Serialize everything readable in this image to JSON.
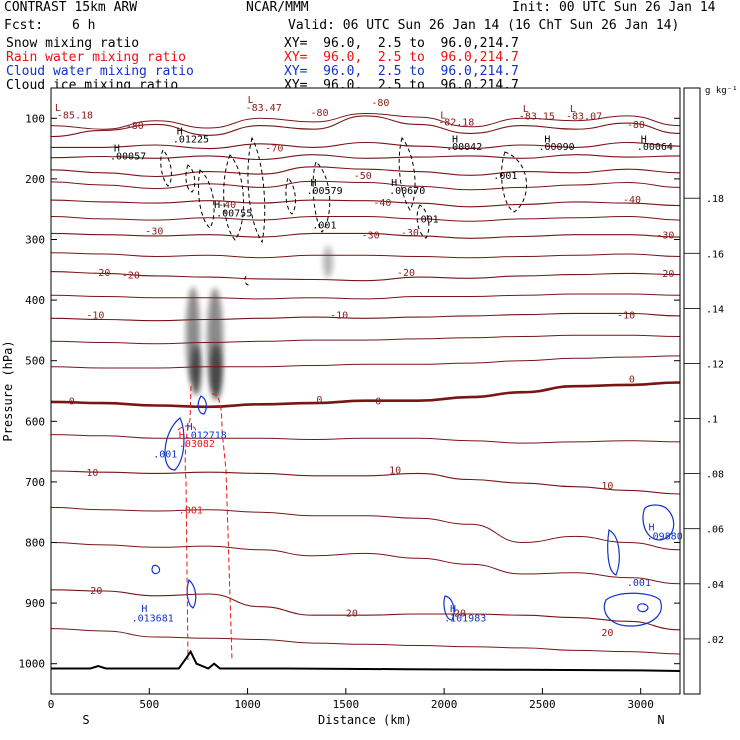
{
  "header": {
    "title": "CONTRAST 15km ARW",
    "center": "NCAR/MMM",
    "init": "Init: 00 UTC Sun 26 Jan 14",
    "fcst_label": "Fcst:",
    "fcst_value": "6 h",
    "valid": "Valid: 06 UTC Sun 26 Jan 14 (16 ChT Sun 26 Jan 14)",
    "fields": [
      {
        "name": "Snow mixing ratio",
        "xy": "XY=  96.0,  2.5 to  96.0,214.7",
        "color": "#000000"
      },
      {
        "name": "Rain water mixing ratio",
        "xy": "XY=  96.0,  2.5 to  96.0,214.7",
        "color": "#ee1111"
      },
      {
        "name": "Cloud water mixing ratio",
        "xy": "XY=  96.0,  2.5 to  96.0,214.7",
        "color": "#1133cc"
      },
      {
        "name": "Cloud ice mixing ratio",
        "xy": "XY=  96.0,  2.5 to  96.0,214.7",
        "color": "#000000"
      }
    ]
  },
  "chart_data": {
    "type": "cross-section",
    "xlabel": "Distance (km)",
    "ylabel": "Pressure (hPa)",
    "xlim": [
      0,
      3200
    ],
    "ylim": [
      1050,
      50
    ],
    "x_ticks": [
      0,
      500,
      1000,
      1500,
      2000,
      2500,
      3000
    ],
    "y_ticks": [
      100,
      200,
      300,
      400,
      500,
      600,
      700,
      800,
      900,
      1000
    ],
    "left_end": "S",
    "right_end": "N",
    "colorbar": {
      "unit": "g kg⁻¹",
      "ticks": [
        ".02",
        ".04",
        ".06",
        ".08",
        ".1",
        ".12",
        ".14",
        ".16",
        ".18"
      ],
      "colors": [
        "#ffffff",
        "#f2f2f2",
        "#e2e2e2",
        "#d0d0d0",
        "#bdbdbd",
        "#a8a8a8",
        "#929292",
        "#7b7b7b",
        "#636363",
        "#4c4c4c",
        "#363636"
      ]
    },
    "temperature_contours": [
      {
        "label": "-80",
        "p": [
          130,
          120,
          110,
          128,
          112,
          118,
          96,
          110,
          125,
          112,
          118,
          108,
          125
        ]
      },
      {
        "label": "-70",
        "p": [
          148,
          148,
          144,
          150,
          142,
          148,
          140,
          146,
          150,
          144,
          148,
          140,
          146
        ]
      },
      {
        "label": "-60",
        "p": [
          165,
          163,
          166,
          162,
          168,
          160,
          166,
          164,
          162,
          166,
          160,
          164,
          162
        ]
      },
      {
        "label": "-50",
        "p": [
          185,
          190,
          196,
          188,
          192,
          180,
          184,
          188,
          194,
          188,
          190,
          184,
          190
        ]
      },
      {
        "label": "-40",
        "p": [
          235,
          238,
          240,
          236,
          240,
          235,
          236,
          240,
          246,
          242,
          238,
          240,
          244
        ]
      },
      {
        "label": "-30",
        "p": [
          290,
          292,
          294,
          292,
          296,
          290,
          290,
          294,
          298,
          295,
          292,
          292,
          296
        ]
      },
      {
        "label": "-20",
        "p": [
          353,
          356,
          360,
          362,
          365,
          366,
          368,
          362,
          364,
          360,
          358,
          356,
          358
        ]
      },
      {
        "label": "-10",
        "p": [
          430,
          432,
          434,
          432,
          430,
          428,
          430,
          428,
          426,
          424,
          422,
          422,
          426
        ]
      },
      {
        "label": "0",
        "p": [
          568,
          570,
          574,
          576,
          572,
          570,
          566,
          566,
          560,
          552,
          542,
          540,
          536
        ]
      },
      {
        "label": "10",
        "p": [
          682,
          684,
          686,
          684,
          686,
          690,
          690,
          686,
          696,
          702,
          708,
          714,
          720
        ]
      },
      {
        "label": "20",
        "p": [
          878,
          880,
          888,
          885,
          906,
          920,
          920,
          918,
          918,
          920,
          924,
          930,
          944
        ]
      }
    ],
    "surface_pressure": [
      1008,
      1008,
      1006,
      980,
      1006,
      1007,
      1008,
      1009,
      1010,
      1010,
      1011,
      1012,
      1012
    ],
    "contour_labels": [
      {
        "text": "L",
        "x": 20,
        "p": 88,
        "color": "#8b1a1a"
      },
      {
        "text": "-85.18",
        "x": 30,
        "p": 100,
        "color": "#8b1a1a"
      },
      {
        "text": "L",
        "x": 1000,
        "p": 75,
        "color": "#8b1a1a"
      },
      {
        "text": "-83.47",
        "x": 990,
        "p": 88,
        "color": "#8b1a1a"
      },
      {
        "text": "L",
        "x": 1980,
        "p": 100,
        "color": "#8b1a1a"
      },
      {
        "text": "-82.18",
        "x": 1970,
        "p": 112,
        "color": "#8b1a1a"
      },
      {
        "text": "L",
        "x": 2400,
        "p": 90,
        "color": "#8b1a1a"
      },
      {
        "text": "-83.15",
        "x": 2380,
        "p": 102,
        "color": "#8b1a1a"
      },
      {
        "text": "L",
        "x": 2640,
        "p": 90,
        "color": "#8b1a1a"
      },
      {
        "text": "-83.07",
        "x": 2620,
        "p": 102,
        "color": "#8b1a1a"
      },
      {
        "text": "-80",
        "x": 380,
        "p": 118,
        "color": "#8b1a1a"
      },
      {
        "text": "-80",
        "x": 1320,
        "p": 96,
        "color": "#8b1a1a"
      },
      {
        "text": "-80",
        "x": 1630,
        "p": 80,
        "color": "#8b1a1a"
      },
      {
        "text": "-80",
        "x": 2930,
        "p": 116,
        "color": "#8b1a1a"
      },
      {
        "text": "-70",
        "x": 1090,
        "p": 155,
        "color": "#8b1a1a"
      },
      {
        "text": "-50",
        "x": 1540,
        "p": 200,
        "color": "#8b1a1a"
      },
      {
        "text": "-40",
        "x": 850,
        "p": 248,
        "color": "#8b1a1a"
      },
      {
        "text": "-40",
        "x": 1640,
        "p": 245,
        "color": "#8b1a1a"
      },
      {
        "text": "-40",
        "x": 2910,
        "p": 240,
        "color": "#8b1a1a"
      },
      {
        "text": "-30",
        "x": 480,
        "p": 292,
        "color": "#8b1a1a"
      },
      {
        "text": "-30",
        "x": 1580,
        "p": 298,
        "color": "#8b1a1a"
      },
      {
        "text": "-30",
        "x": 1780,
        "p": 294,
        "color": "#8b1a1a"
      },
      {
        "text": "-30",
        "x": 3080,
        "p": 298,
        "color": "#8b1a1a"
      },
      {
        "text": "-20",
        "x": 210,
        "p": 360,
        "color": "#8b1a1a"
      },
      {
        "text": "-20",
        "x": 360,
        "p": 364,
        "color": "#8b1a1a"
      },
      {
        "text": "-20",
        "x": 1760,
        "p": 360,
        "color": "#8b1a1a"
      },
      {
        "text": "-20",
        "x": 3080,
        "p": 362,
        "color": "#8b1a1a"
      },
      {
        "text": "-10",
        "x": 180,
        "p": 430,
        "color": "#8b1a1a"
      },
      {
        "text": "-10",
        "x": 1420,
        "p": 430,
        "color": "#8b1a1a"
      },
      {
        "text": "-10",
        "x": 2880,
        "p": 430,
        "color": "#8b1a1a"
      },
      {
        "text": "0",
        "x": 90,
        "p": 572,
        "color": "#8b1a1a"
      },
      {
        "text": "0",
        "x": 1350,
        "p": 570,
        "color": "#8b1a1a"
      },
      {
        "text": "0",
        "x": 1650,
        "p": 572,
        "color": "#8b1a1a"
      },
      {
        "text": "0",
        "x": 2940,
        "p": 536,
        "color": "#8b1a1a"
      },
      {
        "text": "10",
        "x": 180,
        "p": 690,
        "color": "#8b1a1a"
      },
      {
        "text": "10",
        "x": 1720,
        "p": 686,
        "color": "#8b1a1a"
      },
      {
        "text": "10",
        "x": 2800,
        "p": 712,
        "color": "#8b1a1a"
      },
      {
        "text": "20",
        "x": 200,
        "p": 885,
        "color": "#8b1a1a"
      },
      {
        "text": "20",
        "x": 1500,
        "p": 922,
        "color": "#8b1a1a"
      },
      {
        "text": "20",
        "x": 2050,
        "p": 922,
        "color": "#8b1a1a"
      },
      {
        "text": "20",
        "x": 2800,
        "p": 954,
        "color": "#8b1a1a"
      },
      {
        "text": "H",
        "x": 640,
        "p": 127,
        "color": "#000000"
      },
      {
        "text": ".01225",
        "x": 620,
        "p": 140,
        "color": "#000000"
      },
      {
        "text": "H",
        "x": 320,
        "p": 155,
        "color": "#000000"
      },
      {
        "text": ".00057",
        "x": 300,
        "p": 168,
        "color": "#000000"
      },
      {
        "text": "H",
        "x": 830,
        "p": 248,
        "color": "#000000"
      },
      {
        "text": ".00755",
        "x": 840,
        "p": 262,
        "color": "#000000"
      },
      {
        "text": "H",
        "x": 1320,
        "p": 212,
        "color": "#000000"
      },
      {
        "text": ".00579",
        "x": 1300,
        "p": 225,
        "color": "#000000"
      },
      {
        "text": ".001",
        "x": 1330,
        "p": 282,
        "color": "#000000"
      },
      {
        "text": "H",
        "x": 1730,
        "p": 212,
        "color": "#000000"
      },
      {
        "text": ".00670",
        "x": 1720,
        "p": 225,
        "color": "#000000"
      },
      {
        "text": ".001",
        "x": 1850,
        "p": 272,
        "color": "#000000"
      },
      {
        "text": "H",
        "x": 2040,
        "p": 140,
        "color": "#000000"
      },
      {
        "text": ".00042",
        "x": 2010,
        "p": 152,
        "color": "#000000"
      },
      {
        "text": ".001",
        "x": 2250,
        "p": 200,
        "color": "#000000"
      },
      {
        "text": "H",
        "x": 2510,
        "p": 140,
        "color": "#000000"
      },
      {
        "text": ".00090",
        "x": 2480,
        "p": 152,
        "color": "#000000"
      },
      {
        "text": "H",
        "x": 3000,
        "p": 140,
        "color": "#000000"
      },
      {
        "text": ".00064",
        "x": 2980,
        "p": 152,
        "color": "#000000"
      },
      {
        "text": "H",
        "x": 690,
        "p": 614,
        "color": "#1133cc"
      },
      {
        "text": ".012718",
        "x": 680,
        "p": 628,
        "color": "#1133cc"
      },
      {
        "text": ".001",
        "x": 520,
        "p": 660,
        "color": "#1133cc"
      },
      {
        "text": "H",
        "x": 460,
        "p": 915,
        "color": "#1133cc"
      },
      {
        "text": ".013681",
        "x": 410,
        "p": 930,
        "color": "#1133cc"
      },
      {
        "text": "H",
        "x": 2030,
        "p": 915,
        "color": "#1133cc"
      },
      {
        "text": ".101983",
        "x": 2000,
        "p": 930,
        "color": "#1133cc"
      },
      {
        "text": "H",
        "x": 3040,
        "p": 780,
        "color": "#1133cc"
      },
      {
        "text": ".09880",
        "x": 3030,
        "p": 795,
        "color": "#1133cc"
      },
      {
        "text": ".001",
        "x": 2930,
        "p": 872,
        "color": "#1133cc"
      },
      {
        "text": "H",
        "x": 650,
        "p": 628,
        "color": "#ee1111"
      },
      {
        "text": ".03082",
        "x": 650,
        "p": 642,
        "color": "#ee1111"
      },
      {
        "text": ".001",
        "x": 650,
        "p": 752,
        "color": "#ee1111"
      }
    ]
  }
}
